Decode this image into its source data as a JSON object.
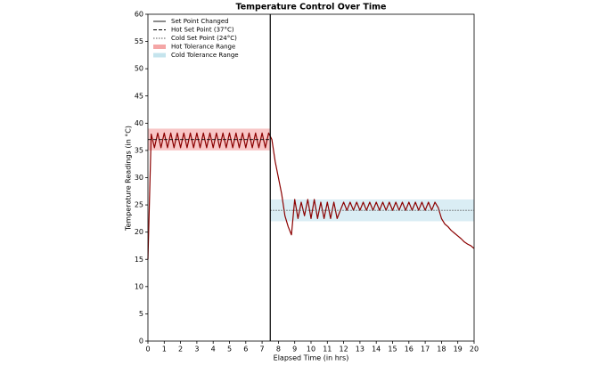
{
  "chart_data": {
    "type": "line",
    "title": "Temperature Control Over Time",
    "xlabel": "Elapsed Time (in hrs)",
    "ylabel": "Temperature Readings (in °C)",
    "x": [
      0,
      0.2,
      0.4,
      0.6,
      0.8,
      1,
      1.2,
      1.4,
      1.6,
      1.8,
      2,
      2.2,
      2.4,
      2.6,
      2.8,
      3,
      3.2,
      3.4,
      3.6,
      3.8,
      4,
      4.2,
      4.4,
      4.6,
      4.8,
      5,
      5.2,
      5.4,
      5.6,
      5.8,
      6,
      6.2,
      6.4,
      6.6,
      6.8,
      7,
      7.2,
      7.4,
      7.6,
      7.8,
      8,
      8.2,
      8.4,
      8.6,
      8.8,
      9,
      9.2,
      9.4,
      9.6,
      9.8,
      10,
      10.2,
      10.4,
      10.6,
      10.8,
      11,
      11.2,
      11.4,
      11.6,
      11.8,
      12,
      12.2,
      12.4,
      12.6,
      12.8,
      13,
      13.2,
      13.4,
      13.6,
      13.8,
      14,
      14.2,
      14.4,
      14.6,
      14.8,
      15,
      15.2,
      15.4,
      15.6,
      15.8,
      16,
      16.2,
      16.4,
      16.6,
      16.8,
      17,
      17.2,
      17.4,
      17.6,
      17.8,
      18,
      18.2,
      18.4,
      18.6,
      18.8,
      19,
      19.2,
      19.4,
      19.6,
      19.8,
      20
    ],
    "series": [
      {
        "color": "#8b0000",
        "values": [
          15,
          38,
          35.5,
          38.2,
          35.5,
          38.2,
          35.5,
          38.2,
          35.5,
          38.2,
          35.5,
          38.2,
          35.5,
          38.2,
          35.5,
          38.2,
          35.5,
          38.2,
          35.5,
          38.2,
          35.5,
          38.2,
          35.5,
          38.2,
          35.5,
          38.2,
          35.5,
          38.2,
          35.5,
          38.2,
          35.5,
          38.2,
          35.5,
          38.2,
          35.5,
          38.2,
          35.5,
          38.2,
          37,
          33,
          30,
          27,
          23,
          21,
          19.5,
          26,
          22.5,
          25.5,
          23,
          26,
          22.5,
          26,
          22.5,
          25.5,
          22.5,
          25.5,
          22.5,
          25.5,
          22.5,
          24,
          25.5,
          24,
          25.5,
          24,
          25.5,
          24,
          25.5,
          24,
          25.5,
          24,
          25.5,
          24,
          25.5,
          24,
          25.5,
          24,
          25.5,
          24,
          25.5,
          24,
          25.5,
          24,
          25.5,
          24,
          25.5,
          24,
          25.5,
          24,
          25.5,
          24.5,
          22.5,
          21.5,
          21,
          20.3,
          19.8,
          19.3,
          18.8,
          18.2,
          17.8,
          17.5,
          17
        ]
      }
    ],
    "vlines": [
      {
        "name": "Set Point Changed",
        "x": 7.5,
        "color": "#000000"
      }
    ],
    "hlines": [
      {
        "name": "Hot Set Point (37°C)",
        "y": 37,
        "x": [
          0,
          7.5
        ],
        "color": "#000000",
        "style": "dashed"
      },
      {
        "name": "Cold Set Point (24°C)",
        "y": 24,
        "x": [
          7.5,
          20
        ],
        "color": "#555555",
        "style": "dotted"
      }
    ],
    "bands": [
      {
        "name": "Hot Tolerance Range",
        "y": [
          35,
          39
        ],
        "x": [
          0,
          7.5
        ],
        "color": "#f08080"
      },
      {
        "name": "Cold Tolerance Range",
        "y": [
          22,
          26
        ],
        "x": [
          7.5,
          20
        ],
        "color": "#add8e6"
      }
    ],
    "xlim": [
      0,
      20
    ],
    "xticks": [
      0,
      1,
      2,
      3,
      4,
      5,
      6,
      7,
      8,
      9,
      10,
      11,
      12,
      13,
      14,
      15,
      16,
      17,
      18,
      19,
      20
    ],
    "ylim": [
      0,
      60
    ],
    "yticks": [
      0,
      5,
      10,
      15,
      20,
      25,
      30,
      35,
      40,
      45,
      50,
      55,
      60
    ],
    "legend": "upper left"
  }
}
